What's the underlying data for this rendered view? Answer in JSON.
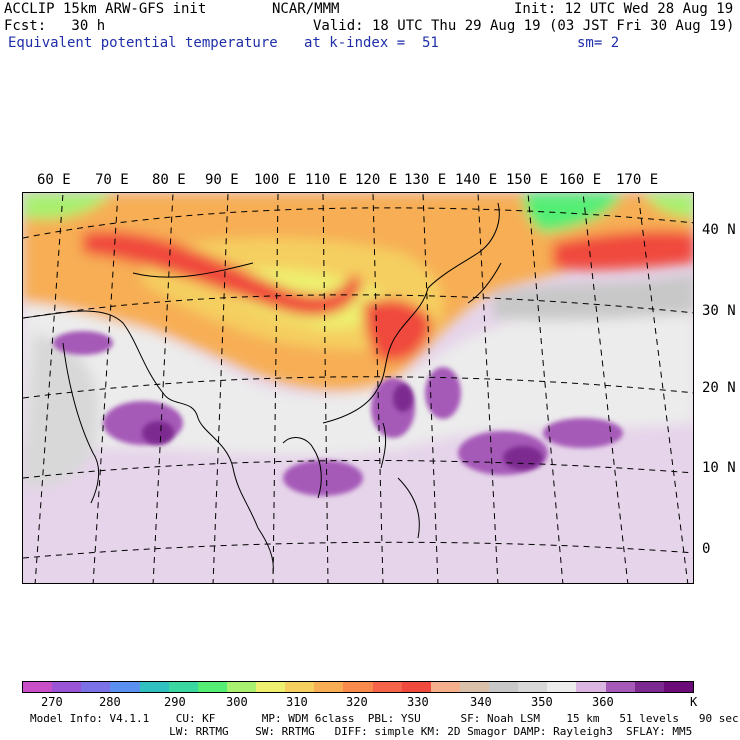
{
  "header": {
    "left1": "ACCLIP 15km ARW-GFS init",
    "center1": "NCAR/MMM",
    "right1": "Init: 12 UTC Wed 28 Aug 19",
    "left2": "Fcst:   30 h",
    "right2": "Valid: 18 UTC Thu 29 Aug 19 (03 JST Fri 30 Aug 19)",
    "field": "Equivalent potential temperature",
    "level": "at k-index =  51",
    "smooth": "sm= 2"
  },
  "map": {
    "lon_labels": [
      "60 E",
      "70 E",
      "80 E",
      "90 E",
      "100 E",
      "110 E",
      "120 E",
      "130 E",
      "140 E",
      "150 E",
      "160 E",
      "170 E"
    ],
    "lat_labels": [
      "40 N",
      "30 N",
      "20 N",
      "10 N",
      "0"
    ]
  },
  "colorbar": {
    "colors": [
      "#c94fc9",
      "#9a55d6",
      "#7a72e6",
      "#5b8ff0",
      "#30c0c0",
      "#3ad8a0",
      "#55ee75",
      "#a8f070",
      "#eef070",
      "#f5cf60",
      "#f7ae55",
      "#f78a4c",
      "#f5644a",
      "#f04a3e",
      "#f4b08c",
      "#d9c0a8",
      "#c8c8c8",
      "#d8d8d8",
      "#ececec",
      "#dcb6e2",
      "#a65ab8",
      "#7d2a90",
      "#6a0b78"
    ],
    "ticks": [
      "270",
      "280",
      "290",
      "300",
      "310",
      "320",
      "330",
      "340",
      "350",
      "360"
    ],
    "unit": "K"
  },
  "model_info": {
    "line1": "Model Info: V4.1.1    CU: KF       MP: WDM 6class  PBL: YSU      SF: Noah LSM    15 km   51 levels   90 sec",
    "line2": "                     LW: RRTMG    SW: RRTMG   DIFF: simple KM: 2D Smagor DAMP: Rayleigh3  SFLAY: MM5"
  }
}
